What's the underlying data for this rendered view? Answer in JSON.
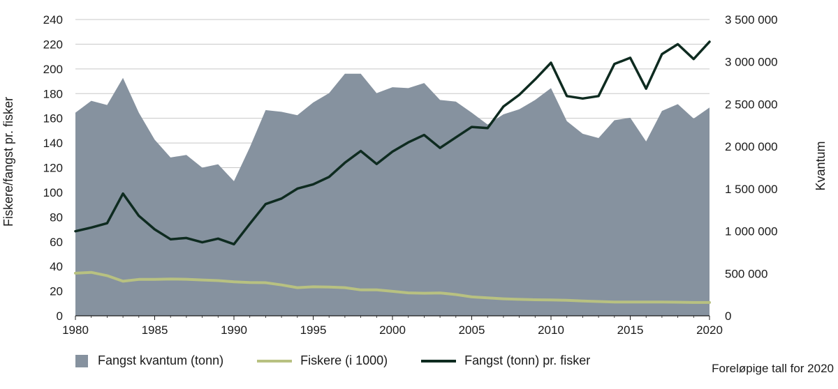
{
  "chart_data": {
    "type": "area",
    "x": [
      1980,
      1981,
      1982,
      1983,
      1984,
      1985,
      1986,
      1987,
      1988,
      1989,
      1990,
      1991,
      1992,
      1993,
      1994,
      1995,
      1996,
      1997,
      1998,
      1999,
      2000,
      2001,
      2002,
      2003,
      2004,
      2005,
      2006,
      2007,
      2008,
      2009,
      2010,
      2011,
      2012,
      2013,
      2014,
      2015,
      2016,
      2017,
      2018,
      2019,
      2020
    ],
    "x_ticks": [
      "1980",
      "1985",
      "1990",
      "1995",
      "2000",
      "2005",
      "2010",
      "2015",
      "2020"
    ],
    "y_left_ticks": [
      "0",
      "20",
      "40",
      "60",
      "80",
      "100",
      "120",
      "140",
      "160",
      "180",
      "200",
      "220",
      "240"
    ],
    "y_right_ticks": [
      "0",
      "500 000",
      "1 000 000",
      "1 500 000",
      "2 000 000",
      "2 500 000",
      "3 000 000",
      "3 500 000"
    ],
    "ylabel_left": "Fiskere/fangst pr. fisker",
    "ylabel_right": "Kvantum",
    "ylim_left": [
      0,
      240
    ],
    "ylim_right": [
      0,
      3500000
    ],
    "series": [
      {
        "name": "Fangst kvantum (tonn)",
        "type": "area",
        "axis": "right",
        "color": "#86929f",
        "values": [
          2400000,
          2540000,
          2490000,
          2810000,
          2400000,
          2080000,
          1870000,
          1900000,
          1750000,
          1790000,
          1590000,
          1990000,
          2430000,
          2410000,
          2370000,
          2520000,
          2630000,
          2860000,
          2860000,
          2630000,
          2700000,
          2690000,
          2750000,
          2550000,
          2530000,
          2400000,
          2260000,
          2380000,
          2440000,
          2550000,
          2690000,
          2300000,
          2150000,
          2100000,
          2310000,
          2340000,
          2060000,
          2420000,
          2500000,
          2330000,
          2460000
        ]
      },
      {
        "name": "Fiskere (i 1000)",
        "type": "line",
        "axis": "left",
        "color": "#b8c181",
        "values": [
          34.5,
          35.2,
          32.5,
          28.0,
          29.5,
          29.5,
          29.8,
          29.6,
          29.0,
          28.5,
          27.5,
          27.0,
          26.8,
          25.0,
          22.8,
          23.5,
          23.3,
          22.8,
          21.0,
          21.0,
          19.8,
          18.6,
          18.3,
          18.5,
          17.2,
          15.3,
          14.5,
          13.8,
          13.3,
          13.0,
          12.8,
          12.6,
          12.0,
          11.6,
          11.2,
          11.1,
          11.1,
          11.1,
          11.0,
          10.8,
          10.8
        ]
      },
      {
        "name": "Fangst (tonn) pr. fisker",
        "type": "line",
        "axis": "left",
        "color": "#0e2b20",
        "values": [
          68.5,
          71.5,
          75.0,
          99.0,
          81.0,
          70.0,
          62.0,
          63.0,
          59.5,
          62.5,
          58.0,
          74.5,
          90.5,
          95.0,
          103.0,
          106.5,
          112.5,
          124.0,
          133.5,
          123.0,
          133.0,
          140.5,
          146.5,
          136.0,
          144.5,
          153.0,
          152.0,
          169.5,
          179.0,
          191.5,
          205.0,
          178.0,
          176.0,
          178.0,
          204.0,
          209.0,
          184.0,
          212.0,
          220.0,
          208.0,
          222.0
        ]
      }
    ],
    "legend_position": "bottom",
    "grid": true
  },
  "legend": {
    "area_label": "Fangst kvantum (tonn)",
    "fiskere_label": "Fiskere (i 1000)",
    "fangst_pr_label": "Fangst (tonn) pr. fisker"
  },
  "note": "Foreløpige tall for 2020"
}
